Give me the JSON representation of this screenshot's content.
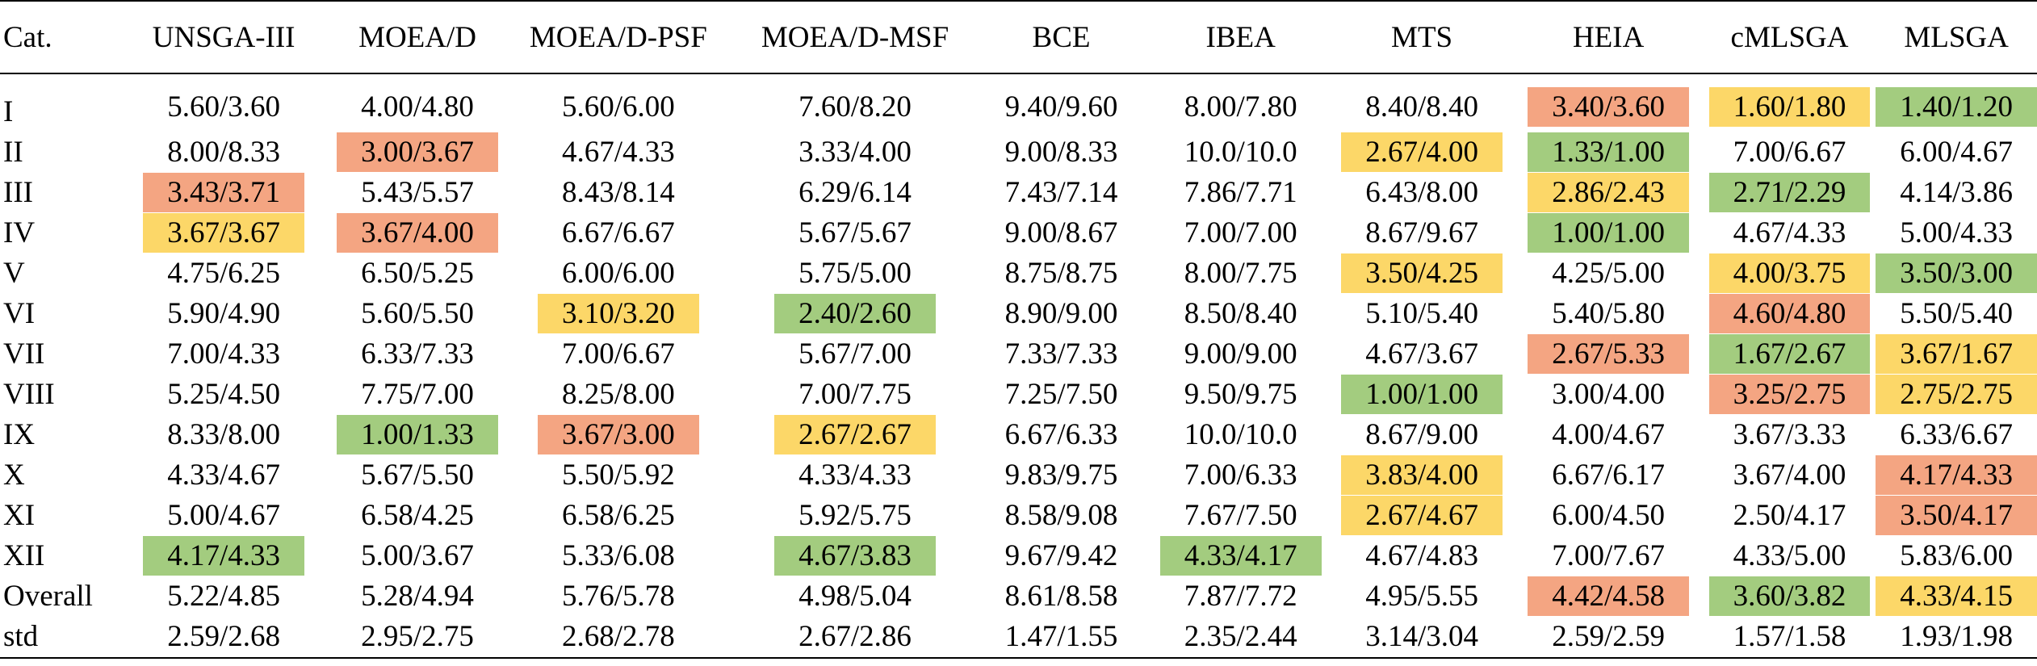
{
  "table": {
    "columns": [
      "Cat.",
      "UNSGA-III",
      "MOEA/D",
      "MOEA/D-PSF",
      "MOEA/D-MSF",
      "BCE",
      "IBEA",
      "MTS",
      "HEIA",
      "cMLSGA",
      "MLSGA"
    ],
    "highlight_colors": {
      "red": "#f4a582",
      "yellow": "#fcd768",
      "green": "#a3cc7f"
    },
    "rows": [
      {
        "cat": "I",
        "values": [
          "5.60/3.60",
          "4.00/4.80",
          "5.60/6.00",
          "7.60/8.20",
          "9.40/9.60",
          "8.00/7.80",
          "8.40/8.40",
          "3.40/3.60",
          "1.60/1.80",
          "1.40/1.20"
        ],
        "highlights": [
          "",
          "",
          "",
          "",
          "",
          "",
          "",
          "red",
          "yellow",
          "green"
        ]
      },
      {
        "cat": "II",
        "values": [
          "8.00/8.33",
          "3.00/3.67",
          "4.67/4.33",
          "3.33/4.00",
          "9.00/8.33",
          "10.0/10.0",
          "2.67/4.00",
          "1.33/1.00",
          "7.00/6.67",
          "6.00/4.67"
        ],
        "highlights": [
          "",
          "red",
          "",
          "",
          "",
          "",
          "yellow",
          "green",
          "",
          ""
        ]
      },
      {
        "cat": "III",
        "values": [
          "3.43/3.71",
          "5.43/5.57",
          "8.43/8.14",
          "6.29/6.14",
          "7.43/7.14",
          "7.86/7.71",
          "6.43/8.00",
          "2.86/2.43",
          "2.71/2.29",
          "4.14/3.86"
        ],
        "highlights": [
          "red",
          "",
          "",
          "",
          "",
          "",
          "",
          "yellow",
          "green",
          ""
        ]
      },
      {
        "cat": "IV",
        "values": [
          "3.67/3.67",
          "3.67/4.00",
          "6.67/6.67",
          "5.67/5.67",
          "9.00/8.67",
          "7.00/7.00",
          "8.67/9.67",
          "1.00/1.00",
          "4.67/4.33",
          "5.00/4.33"
        ],
        "highlights": [
          "yellow",
          "red",
          "",
          "",
          "",
          "",
          "",
          "green",
          "",
          ""
        ]
      },
      {
        "cat": "V",
        "values": [
          "4.75/6.25",
          "6.50/5.25",
          "6.00/6.00",
          "5.75/5.00",
          "8.75/8.75",
          "8.00/7.75",
          "3.50/4.25",
          "4.25/5.00",
          "4.00/3.75",
          "3.50/3.00"
        ],
        "highlights": [
          "",
          "",
          "",
          "",
          "",
          "",
          "yellow",
          "",
          "yellow",
          "green"
        ]
      },
      {
        "cat": "VI",
        "values": [
          "5.90/4.90",
          "5.60/5.50",
          "3.10/3.20",
          "2.40/2.60",
          "8.90/9.00",
          "8.50/8.40",
          "5.10/5.40",
          "5.40/5.80",
          "4.60/4.80",
          "5.50/5.40"
        ],
        "highlights": [
          "",
          "",
          "yellow",
          "green",
          "",
          "",
          "",
          "",
          "red",
          ""
        ]
      },
      {
        "cat": "VII",
        "values": [
          "7.00/4.33",
          "6.33/7.33",
          "7.00/6.67",
          "5.67/7.00",
          "7.33/7.33",
          "9.00/9.00",
          "4.67/3.67",
          "2.67/5.33",
          "1.67/2.67",
          "3.67/1.67"
        ],
        "highlights": [
          "",
          "",
          "",
          "",
          "",
          "",
          "",
          "red",
          "green",
          "yellow"
        ]
      },
      {
        "cat": "VIII",
        "values": [
          "5.25/4.50",
          "7.75/7.00",
          "8.25/8.00",
          "7.00/7.75",
          "7.25/7.50",
          "9.50/9.75",
          "1.00/1.00",
          "3.00/4.00",
          "3.25/2.75",
          "2.75/2.75"
        ],
        "highlights": [
          "",
          "",
          "",
          "",
          "",
          "",
          "green",
          "",
          "red",
          "yellow"
        ]
      },
      {
        "cat": "IX",
        "values": [
          "8.33/8.00",
          "1.00/1.33",
          "3.67/3.00",
          "2.67/2.67",
          "6.67/6.33",
          "10.0/10.0",
          "8.67/9.00",
          "4.00/4.67",
          "3.67/3.33",
          "6.33/6.67"
        ],
        "highlights": [
          "",
          "green",
          "red",
          "yellow",
          "",
          "",
          "",
          "",
          "",
          ""
        ]
      },
      {
        "cat": "X",
        "values": [
          "4.33/4.67",
          "5.67/5.50",
          "5.50/5.92",
          "4.33/4.33",
          "9.83/9.75",
          "7.00/6.33",
          "3.83/4.00",
          "6.67/6.17",
          "3.67/4.00",
          "4.17/4.33"
        ],
        "highlights": [
          "",
          "",
          "",
          "",
          "",
          "",
          "yellow",
          "",
          "",
          "red"
        ]
      },
      {
        "cat": "XI",
        "values": [
          "5.00/4.67",
          "6.58/4.25",
          "6.58/6.25",
          "5.92/5.75",
          "8.58/9.08",
          "7.67/7.50",
          "2.67/4.67",
          "6.00/4.50",
          "2.50/4.17",
          "3.50/4.17"
        ],
        "highlights": [
          "",
          "",
          "",
          "",
          "",
          "",
          "yellow",
          "",
          "",
          "red"
        ]
      },
      {
        "cat": "XII",
        "values": [
          "4.17/4.33",
          "5.00/3.67",
          "5.33/6.08",
          "4.67/3.83",
          "9.67/9.42",
          "4.33/4.17",
          "4.67/4.83",
          "7.00/7.67",
          "4.33/5.00",
          "5.83/6.00"
        ],
        "highlights": [
          "green",
          "",
          "",
          "green",
          "",
          "green",
          "",
          "",
          "",
          ""
        ]
      },
      {
        "cat": "Overall",
        "values": [
          "5.22/4.85",
          "5.28/4.94",
          "5.76/5.78",
          "4.98/5.04",
          "8.61/8.58",
          "7.87/7.72",
          "4.95/5.55",
          "4.42/4.58",
          "3.60/3.82",
          "4.33/4.15"
        ],
        "highlights": [
          "",
          "",
          "",
          "",
          "",
          "",
          "",
          "red",
          "green",
          "yellow"
        ]
      },
      {
        "cat": "std",
        "values": [
          "2.59/2.68",
          "2.95/2.75",
          "2.68/2.78",
          "2.67/2.86",
          "1.47/1.55",
          "2.35/2.44",
          "3.14/3.04",
          "2.59/2.59",
          "1.57/1.58",
          "1.93/1.98"
        ],
        "highlights": [
          "",
          "",
          "",
          "",
          "",
          "",
          "",
          "",
          "",
          ""
        ]
      }
    ]
  }
}
